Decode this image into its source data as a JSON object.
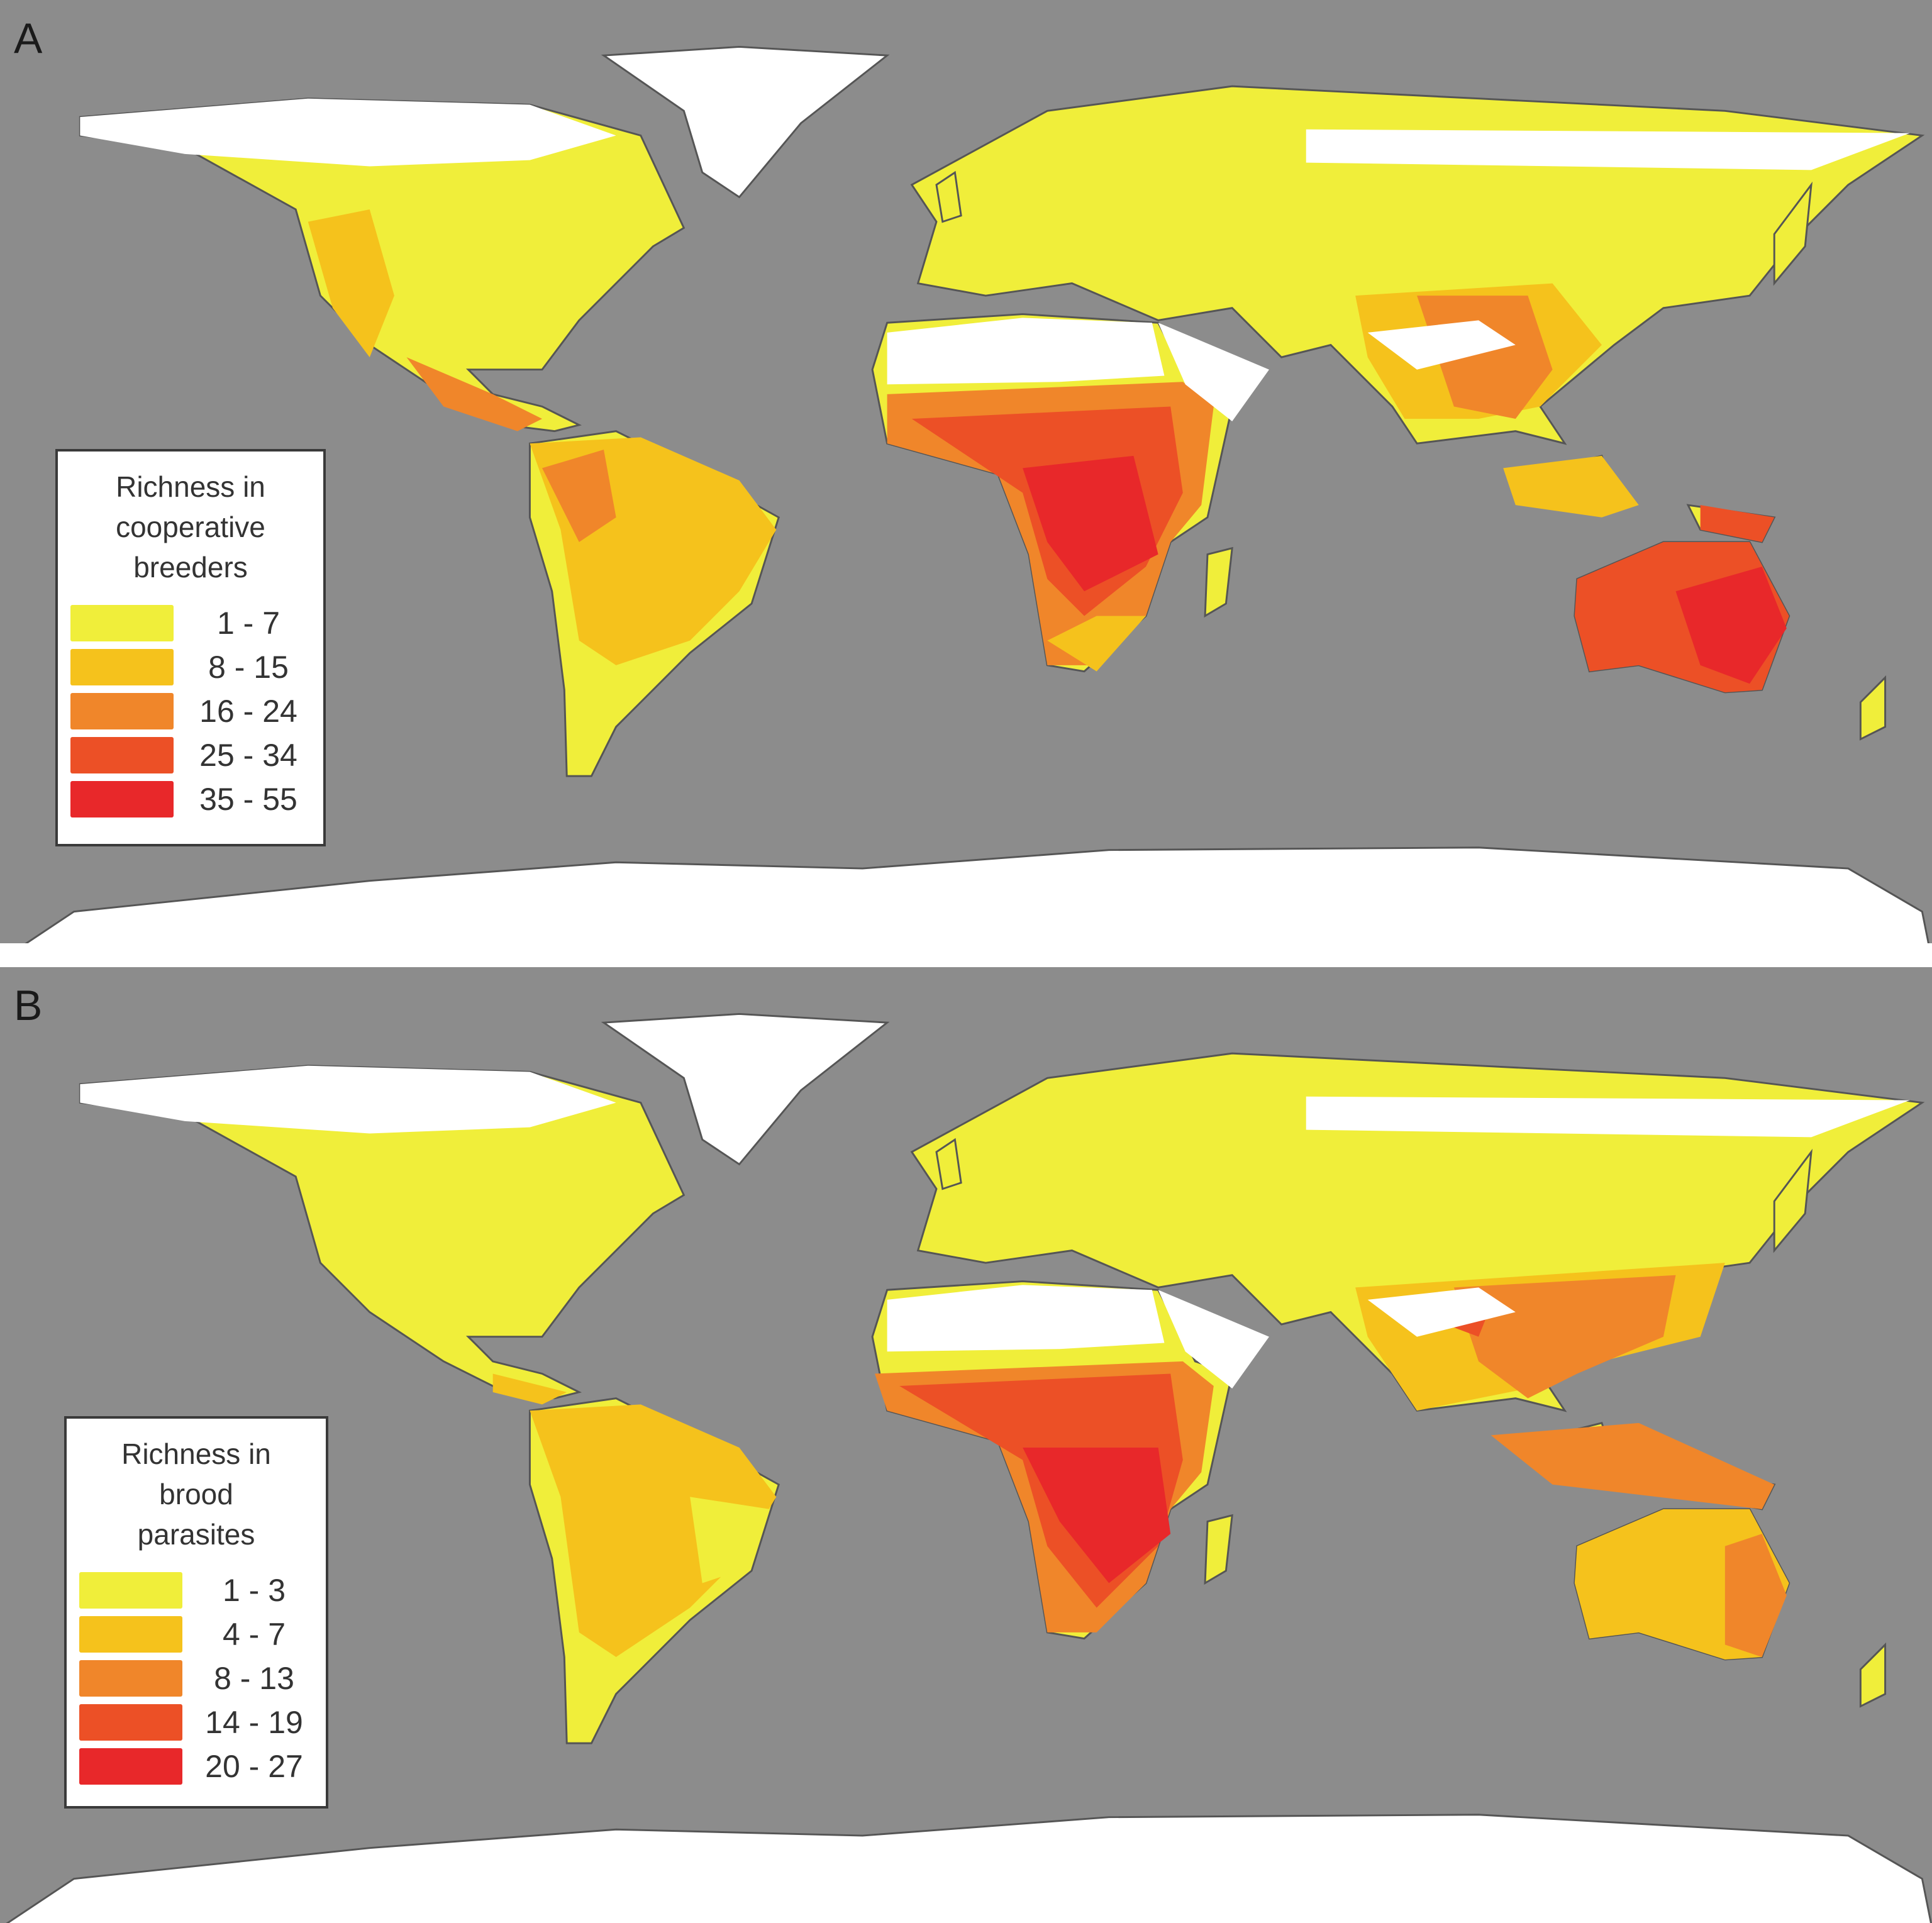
{
  "figure": {
    "colors": {
      "ocean": "#8c8c8c",
      "no_data_land": "#ffffff",
      "border": "#3a3a3a"
    },
    "panels": [
      {
        "letter": "A",
        "legend": {
          "title_lines": [
            "Richness in",
            "cooperative",
            "breeders"
          ],
          "classes": [
            {
              "label": "1 - 7",
              "color": "#f0ee3a"
            },
            {
              "label": "8 - 15",
              "color": "#f5c21c"
            },
            {
              "label": "16 - 24",
              "color": "#f0862a"
            },
            {
              "label": "25 - 34",
              "color": "#ec5026"
            },
            {
              "label": "35 - 55",
              "color": "#e8282a"
            }
          ]
        }
      },
      {
        "letter": "B",
        "legend": {
          "title_lines": [
            "Richness in",
            "brood",
            "parasites"
          ],
          "classes": [
            {
              "label": "1 - 3",
              "color": "#f0ee3a"
            },
            {
              "label": "4 - 7",
              "color": "#f5c21c"
            },
            {
              "label": "8 - 13",
              "color": "#f0862a"
            },
            {
              "label": "14 - 19",
              "color": "#ec5026"
            },
            {
              "label": "20 - 27",
              "color": "#e8282a"
            }
          ]
        }
      }
    ]
  }
}
